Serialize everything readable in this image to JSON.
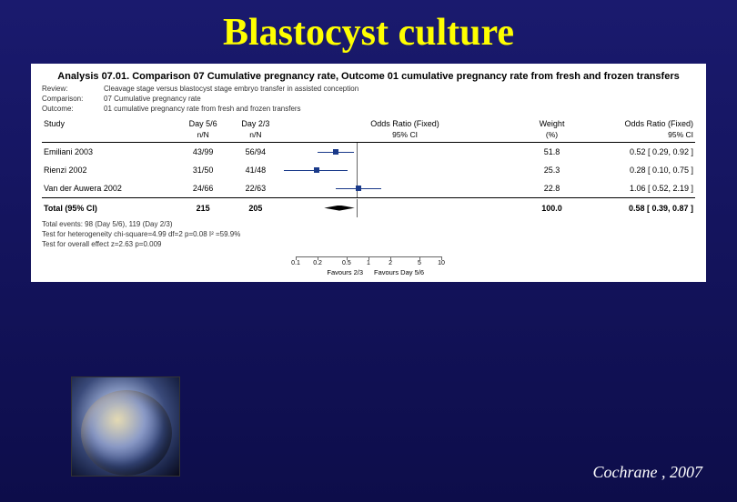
{
  "title": "Blastocyst culture",
  "citation": "Cochrane , 2007",
  "analysis": {
    "heading": "Analysis 07.01.   Comparison 07 Cumulative pregnancy rate, Outcome 01 cumulative pregnancy rate from fresh and frozen transfers",
    "meta": {
      "review_label": "Review:",
      "review": "Cleavage stage versus blastocyst stage embryo transfer in assisted conception",
      "comparison_label": "Comparison:",
      "comparison": "07 Cumulative pregnancy rate",
      "outcome_label": "Outcome:",
      "outcome": "01 cumulative pregnancy rate from fresh and frozen transfers"
    },
    "columns": {
      "study": "Study",
      "day56": "Day 5/6",
      "day23": "Day 2/3",
      "or_fixed": "Odds Ratio (Fixed)",
      "weight": "Weight",
      "nN": "n/N",
      "ci95": "95% CI",
      "pct": "(%)"
    },
    "forest": {
      "log_min": -1.0,
      "log_max": 1.0,
      "vline_at": 0,
      "ticks": [
        {
          "v": 0.1,
          "label": "0.1"
        },
        {
          "v": 0.2,
          "label": "0.2"
        },
        {
          "v": 0.5,
          "label": "0.5"
        },
        {
          "v": 1,
          "label": "1"
        },
        {
          "v": 2,
          "label": "2"
        },
        {
          "v": 5,
          "label": "5"
        },
        {
          "v": 10,
          "label": "10"
        }
      ],
      "left_label": "Favours 2/3",
      "right_label": "Favours Day 5/6"
    },
    "rows": [
      {
        "study": "Emiliani 2003",
        "d56": "43/99",
        "d23": "56/94",
        "weight": "51.8",
        "ci_text": "0.52 [ 0.29, 0.92 ]",
        "pt": 0.52,
        "lo": 0.29,
        "hi": 0.92
      },
      {
        "study": "Rienzi 2002",
        "d56": "31/50",
        "d23": "41/48",
        "weight": "25.3",
        "ci_text": "0.28 [ 0.10, 0.75 ]",
        "pt": 0.28,
        "lo": 0.1,
        "hi": 0.75
      },
      {
        "study": "Van der Auwera 2002",
        "d56": "24/66",
        "d23": "22/63",
        "weight": "22.8",
        "ci_text": "1.06 [ 0.52, 2.19 ]",
        "pt": 1.06,
        "lo": 0.52,
        "hi": 2.19
      }
    ],
    "total": {
      "label": "Total (95% CI)",
      "d56": "215",
      "d23": "205",
      "weight": "100.0",
      "ci_text": "0.58 [ 0.39, 0.87 ]",
      "pt": 0.58,
      "lo": 0.39,
      "hi": 0.87
    },
    "notes": [
      "Total events: 98 (Day 5/6), 119 (Day 2/3)",
      "Test for heterogeneity chi-square=4.99 df=2 p=0.08 I² =59.9%",
      "Test for overall effect z=2.63   p=0.009"
    ]
  }
}
